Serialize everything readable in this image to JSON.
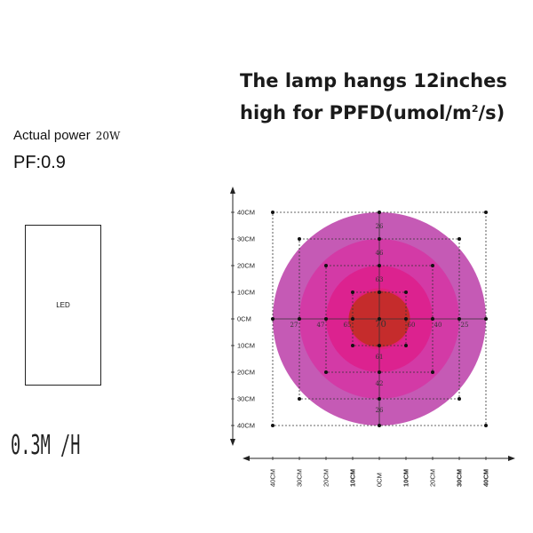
{
  "title": {
    "line1": "The lamp hangs 12inches",
    "line2_pre": "high for PPFD(umol/",
    "unit": "m",
    "sup": "2",
    "line2_post": "/s)"
  },
  "power": {
    "label": "Actual power",
    "value": "20W"
  },
  "pf": "PF:0.9",
  "led_label": "LED",
  "height": "0.3M /H",
  "colors": {
    "ring_outer": "#c55ab5",
    "ring_2": "#d33aa6",
    "ring_3": "#dc228f",
    "ring_4": "#e0207a",
    "core": "#c52c2c"
  },
  "chart_data": {
    "type": "diagram",
    "y_ticks": [
      "40CM",
      "30CM",
      "20CM",
      "10CM",
      "0CM",
      "10CM",
      "20CM",
      "30CM",
      "40CM"
    ],
    "x_ticks": [
      "40CM",
      "30CM",
      "20CM",
      "10CM",
      "0CM",
      "10CM",
      "20CM",
      "30CM",
      "40CM"
    ],
    "x_bold": [
      false,
      false,
      false,
      true,
      false,
      true,
      false,
      true,
      true
    ],
    "axis_cm": [
      -40,
      -30,
      -20,
      -10,
      0,
      10,
      20,
      30,
      40
    ],
    "grid_squares_cm": [
      10,
      20,
      30,
      40
    ],
    "ring_radius_cm": [
      40,
      30,
      20,
      11.5
    ],
    "readings": [
      {
        "label": "26",
        "x_cm": 0,
        "y_cm": 34
      },
      {
        "label": "46",
        "x_cm": 0,
        "y_cm": 24
      },
      {
        "label": "63",
        "x_cm": 0,
        "y_cm": 14
      },
      {
        "label": "61",
        "x_cm": 0,
        "y_cm": -15
      },
      {
        "label": "42",
        "x_cm": 0,
        "y_cm": -25
      },
      {
        "label": "26",
        "x_cm": 0,
        "y_cm": -35
      },
      {
        "label": "27",
        "x_cm": -32,
        "y_cm": -3
      },
      {
        "label": "47",
        "x_cm": -22,
        "y_cm": -3
      },
      {
        "label": "65",
        "x_cm": -12,
        "y_cm": -3
      },
      {
        "label": "70",
        "x_cm": 0.5,
        "y_cm": -3,
        "center": true
      },
      {
        "label": "60",
        "x_cm": 12,
        "y_cm": -3
      },
      {
        "label": "40",
        "x_cm": 22,
        "y_cm": -3
      },
      {
        "label": "25",
        "x_cm": 32,
        "y_cm": -3
      }
    ]
  }
}
